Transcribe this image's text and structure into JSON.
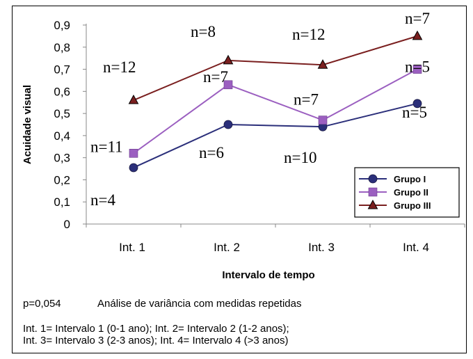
{
  "chart_data": {
    "type": "line",
    "categories": [
      "Int. 1",
      "Int. 2",
      "Int. 3",
      "Int. 4"
    ],
    "xlabel": "Intervalo de tempo",
    "ylabel": "Acuidade visual",
    "ylim": [
      0,
      0.9
    ],
    "yticks": [
      "0",
      "0,1",
      "0,2",
      "0,3",
      "0,4",
      "0,5",
      "0,6",
      "0,7",
      "0,8",
      "0,9"
    ],
    "legend_position": "bottom-right",
    "series": [
      {
        "name": "Grupo I",
        "color": "#2b2f7a",
        "marker": "circle",
        "values": [
          0.255,
          0.45,
          0.44,
          0.545
        ],
        "n_labels": [
          "n=4",
          "n=6",
          "n=10",
          "n=5"
        ]
      },
      {
        "name": "Grupo II",
        "color": "#9b5fc0",
        "marker": "square",
        "values": [
          0.32,
          0.63,
          0.47,
          0.7
        ],
        "n_labels": [
          "n=11",
          "n=7",
          "n=7",
          "n=5"
        ]
      },
      {
        "name": "Grupo III",
        "color": "#7a1f1f",
        "marker": "triangle",
        "values": [
          0.56,
          0.74,
          0.72,
          0.85
        ],
        "n_labels": [
          "n=12",
          "n=8",
          "n=12",
          "n=7"
        ]
      }
    ]
  },
  "notes": {
    "pvalue": "p=0,054",
    "analysis": "Análise de variância com medidas repetidas",
    "legend_line1": "Int. 1= Intervalo 1 (0-1 ano); Int. 2= Intervalo 2 (1-2 anos);",
    "legend_line2": "Int. 3= Intervalo 3 (2-3 anos); Int. 4= Intervalo 4 (>3 anos)"
  }
}
